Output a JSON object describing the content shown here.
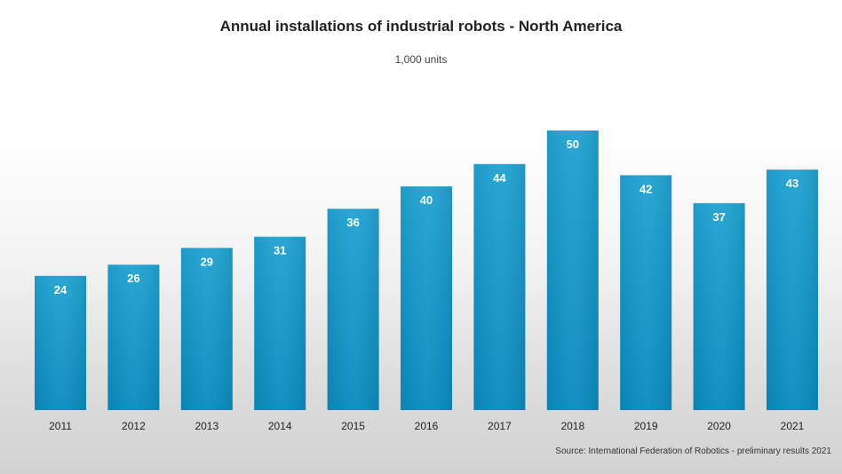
{
  "chart_data": {
    "type": "bar",
    "title": "Annual installations of industrial robots - North America",
    "subtitle": "1,000 units",
    "categories": [
      "2011",
      "2012",
      "2013",
      "2014",
      "2015",
      "2016",
      "2017",
      "2018",
      "2019",
      "2020",
      "2021"
    ],
    "values": [
      24,
      26,
      29,
      31,
      36,
      40,
      44,
      50,
      42,
      37,
      43
    ],
    "data_labels": [
      "24",
      "26",
      "29",
      "31",
      "36",
      "40",
      "44",
      "50",
      "42",
      "37",
      "43"
    ],
    "xlabel": "",
    "ylabel": "",
    "ylim": [
      0,
      50
    ],
    "grid": false,
    "legend": "none",
    "source": "Source: International Federation of Robotics - preliminary results 2021",
    "colors": {
      "bar_top": "#22a3d2",
      "bar_bottom": "#0b8bbe",
      "label": "#ffffff",
      "axis_text": "#222222"
    }
  }
}
